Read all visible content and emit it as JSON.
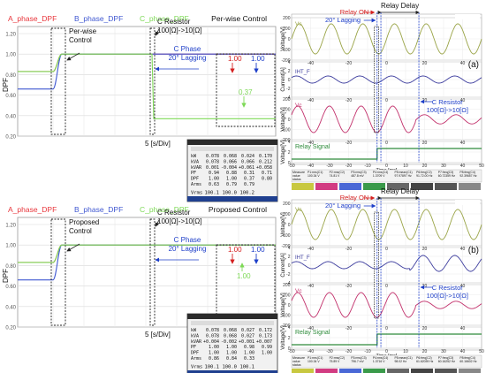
{
  "chart_data": [
    {
      "type": "line",
      "name": "dpf-per-wise",
      "title": "Per-wise Control",
      "ylabel": "DPF",
      "xlabel": "5 [s/Div]",
      "ylim": [
        0.2,
        1.2
      ],
      "yticks": [
        "1.20",
        "1.00",
        "0.80",
        "0.60",
        "0.40",
        "0.20"
      ],
      "legend": [
        "A_phase_DPF",
        "B_phase_DPF",
        "C_phase_DPF"
      ],
      "series_colors": [
        "#e8353b",
        "#3f57d1",
        "#7ed957"
      ],
      "annotations": {
        "control": "Per-wise\nControl",
        "resistor": "C Resistor\n100[Ω]->10[Ω]",
        "phase": "C Phase\n20° Lagging"
      },
      "after_values": {
        "a": "1.00",
        "b": "1.00",
        "c": "0.37"
      },
      "series": [
        {
          "name": "A_phase_DPF",
          "before": 0.83,
          "after": 1.0
        },
        {
          "name": "B_phase_DPF",
          "before": 0.66,
          "after": 1.0
        },
        {
          "name": "C_phase_DPF",
          "before": 0.83,
          "after": 0.37
        }
      ]
    },
    {
      "type": "line",
      "name": "dpf-proposed",
      "title": "Proposed Control",
      "ylabel": "DPF",
      "xlabel": "5 [s/Div]",
      "ylim": [
        0.2,
        1.2
      ],
      "yticks": [
        "1.20",
        "1.00",
        "0.80",
        "0.60",
        "0.40",
        "0.20"
      ],
      "legend": [
        "A_phase_DPF",
        "B_phase_DPF",
        "C_phase_DPF"
      ],
      "series_colors": [
        "#e8353b",
        "#3f57d1",
        "#7ed957"
      ],
      "annotations": {
        "control": "Proposed\nControl",
        "resistor": "C Resistor\n100[Ω]->10[Ω]",
        "phase": "C Phase\n20° Lagging"
      },
      "after_values": {
        "a": "1.00",
        "b": "1.00",
        "c": "1.00"
      },
      "series": [
        {
          "name": "A_phase_DPF",
          "before": 0.83,
          "after": 1.0
        },
        {
          "name": "B_phase_DPF",
          "before": 0.66,
          "after": 1.0
        },
        {
          "name": "C_phase_DPF",
          "before": 0.83,
          "after": 1.0
        }
      ]
    }
  ],
  "meter_tables": [
    {
      "rows": [
        {
          "label": "kW",
          "l1": "0.078",
          "l2": "0.068",
          "l3": "0.024",
          "sum": "0.170"
        },
        {
          "label": "kVA",
          "l1": "0.078",
          "l2": "0.066",
          "l3": "0.066",
          "sum": "0.212"
        },
        {
          "label": "kVAR",
          "l1": "0.001",
          "l2": "-0.004",
          "l3": "+0.061",
          "sum": "+0.058"
        },
        {
          "label": "PF",
          "l1": "0.94",
          "l2": "0.88",
          "l3": "0.31",
          "sum": "0.71"
        },
        {
          "label": "DPF",
          "l1": "1.00",
          "l2": "1.00",
          "l3": "0.37",
          "sum": "0.80"
        },
        {
          "label": "Arms",
          "l1": "0.63",
          "l2": "0.79",
          "l3": "0.79",
          "sum": ""
        }
      ],
      "vrms": {
        "label": "Vrms",
        "l1": "100.1",
        "l2": "100.0",
        "l3": "100.2"
      }
    },
    {
      "rows": [
        {
          "label": "kW",
          "l1": "0.078",
          "l2": "0.068",
          "l3": "0.027",
          "sum": "0.172"
        },
        {
          "label": "kVA",
          "l1": "0.078",
          "l2": "0.068",
          "l3": "0.027",
          "sum": "0.173"
        },
        {
          "label": "kVAR",
          "l1": "+0.004",
          "l2": "-0.002",
          "l3": "+0.001",
          "sum": "+0.007"
        },
        {
          "label": "PF",
          "l1": "1.00",
          "l2": "1.00",
          "l3": "0.98",
          "sum": "0.99"
        },
        {
          "label": "DPF",
          "l1": "1.00",
          "l2": "1.00",
          "l3": "1.00",
          "sum": "1.00"
        },
        {
          "label": "Arms",
          "l1": "0.86",
          "l2": "0.84",
          "l3": "0.33",
          "sum": ""
        }
      ],
      "vrms": {
        "label": "Vrms",
        "l1": "100.1",
        "l2": "100.0",
        "l3": "100.1"
      }
    }
  ],
  "scopes": [
    {
      "panel_label": "(a)",
      "relay_on": "Relay ON",
      "relay_delay": "Relay Delay",
      "lagging": "20° Lagging",
      "resistor": "C Resistor\n100[Ω]->10[Ω]",
      "v_s": "Vs",
      "i_ht": "IHT_F",
      "v_c": "Vc",
      "relay_signal": "Relay Signal",
      "ylabels": [
        "Voltage[V]",
        "Current[A]",
        "Voltage[V]",
        "Voltage[V]"
      ],
      "time_label": "Time [ms]",
      "xticks": [
        "-50",
        "-40",
        "-30",
        "-20",
        "-10",
        "0",
        "10",
        "20",
        "30",
        "40",
        "50"
      ],
      "y_v_ticks": [
        "200",
        "100",
        "0",
        "-100",
        "-200"
      ],
      "y_i_ticks": [
        "4",
        "2",
        "0",
        "-2",
        "-4"
      ],
      "y_r_ticks": [
        "4",
        "2",
        "0"
      ],
      "measure_label": "Measure",
      "measure_value_label": "value",
      "measure_status_label": "status",
      "measure_titles": [
        "P1:rms(C1)",
        "P2:rms(C2)",
        "P3:rms(C3)",
        "P4:rms(C4)",
        "P5:mean(C1)",
        "P6:freq(C2)",
        "P7:freq(C3)",
        "P8:freq(C4)"
      ],
      "measure_values": [
        "100.34 V",
        "74.81 V",
        "487.8 mV",
        "1.3709 V",
        "97.97897 Hz",
        "91.72.00 Hz",
        "60.72359 Hz",
        "92.39657 Hz"
      ]
    },
    {
      "panel_label": "(b)",
      "relay_on": "Relay ON",
      "relay_delay": "Relay Delay",
      "lagging": "20° Lagging",
      "resistor": "C Resistor\n100[Ω]->10[Ω]",
      "v_s": "Vs",
      "i_ht": "IHT_F",
      "v_c": "Vc",
      "relay_signal": "Relay Signal",
      "ylabels": [
        "Voltage[V]",
        "Current[A]",
        "Voltage[V]",
        "Voltage[V]"
      ],
      "time_label": "Time [ms]",
      "xticks": [
        "-50",
        "-40",
        "-30",
        "-20",
        "-10",
        "0",
        "10",
        "20",
        "30",
        "40",
        "50"
      ],
      "y_v_ticks": [
        "200",
        "100",
        "0",
        "-100",
        "-200"
      ],
      "y_i_ticks": [
        "4",
        "2",
        "0",
        "-2",
        "-4"
      ],
      "y_r_ticks": [
        "4",
        "2",
        "0"
      ],
      "measure_label": "Measure",
      "measure_value_label": "value",
      "measure_status_label": "status",
      "measure_titles": [
        "P1:rms(C1)",
        "P2:rms(C2)",
        "P3:rms(C3)",
        "P4:rms(C4)",
        "P5:mean(C1)",
        "P6:freq(C2)",
        "P7:freq(C3)",
        "P8:freq(C4)"
      ],
      "measure_values": [
        "100.34 V",
        "75.89 V",
        "796.7 mV",
        "1.3716 V",
        "98.02 Hz",
        "61.62039 Hz",
        "60.16252 Hz",
        "60.16602 Hz"
      ]
    }
  ],
  "colors": {
    "a_phase": "#e8353b",
    "b_phase": "#3f57d1",
    "c_phase": "#7ed957",
    "scope_vs": "#9aa447",
    "scope_i": "#3d3d9e",
    "scope_vc": "#c2306b",
    "scope_relay": "#2d8b3a",
    "annotation_blue": "#1e3fc9",
    "annotation_red": "#d42020"
  },
  "texts": {
    "per_wise_title": "Per-wise Control",
    "proposed_title": "Proposed Control"
  }
}
